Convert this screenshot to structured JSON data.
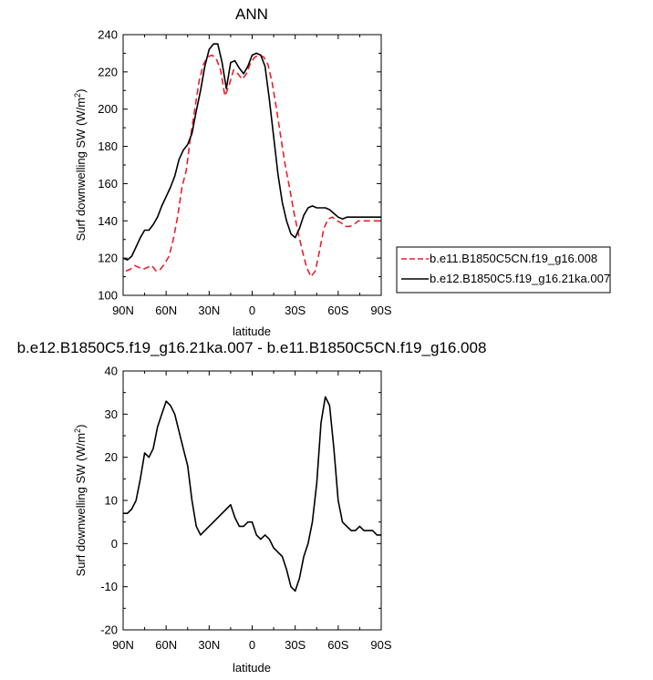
{
  "chart_data": [
    {
      "type": "line",
      "title": "ANN",
      "xlabel": "latitude",
      "ylabel": "Surf downwelling SW (W/m²)",
      "ylabel_main": "Surf downwelling SW (W/m",
      "ylabel_sup": "2",
      "ylabel_end": ")",
      "xlim": [
        90,
        -90
      ],
      "ylim": [
        100,
        240
      ],
      "xticks": [
        90,
        60,
        30,
        0,
        -30,
        -60,
        -90
      ],
      "xtick_labels": [
        "90N",
        "60N",
        "30N",
        "0",
        "30S",
        "60S",
        "90S"
      ],
      "yticks": [
        100,
        120,
        140,
        160,
        180,
        200,
        220,
        240
      ],
      "ytick_labels": [
        "100",
        "120",
        "140",
        "160",
        "180",
        "200",
        "220",
        "240"
      ],
      "legend_position": "right",
      "series": [
        {
          "name": "b.e11.B1850C5CN.f19_g16.008",
          "color": "#e8212b",
          "dash": "dashed",
          "x": [
            88,
            85,
            82,
            79,
            76,
            73,
            70,
            67,
            64,
            61,
            58,
            55,
            52,
            49,
            46,
            43,
            40,
            37,
            34,
            31,
            28,
            25,
            22,
            19,
            16,
            13,
            10,
            7,
            4,
            1,
            -2,
            -5,
            -8,
            -11,
            -14,
            -17,
            -20,
            -23,
            -26,
            -29,
            -32,
            -35,
            -38,
            -41,
            -44,
            -47,
            -50,
            -53,
            -56,
            -59,
            -62,
            -65,
            -68,
            -71,
            -74,
            -77,
            -80,
            -83,
            -86,
            -89
          ],
          "y": [
            113,
            114,
            116,
            115,
            114,
            115,
            116,
            113,
            114,
            117,
            121,
            130,
            142,
            158,
            167,
            185,
            200,
            215,
            224,
            228,
            229,
            227,
            221,
            207,
            213,
            221,
            219,
            216,
            219,
            225,
            228,
            229,
            228,
            224,
            214,
            200,
            185,
            170,
            158,
            145,
            134,
            124,
            115,
            110,
            113,
            124,
            136,
            141,
            142,
            140,
            139,
            137,
            137,
            138,
            140,
            140,
            140,
            140,
            140,
            140
          ]
        },
        {
          "name": "b.e12.B1850C5.f19_g16.21ka.007",
          "color": "#000000",
          "dash": "solid",
          "x": [
            90,
            87,
            84,
            81,
            78,
            75,
            72,
            69,
            66,
            63,
            60,
            57,
            54,
            51,
            48,
            45,
            42,
            39,
            36,
            33,
            30,
            27,
            24,
            21,
            18,
            15,
            12,
            9,
            6,
            3,
            0,
            -3,
            -6,
            -9,
            -12,
            -15,
            -18,
            -21,
            -24,
            -27,
            -30,
            -33,
            -36,
            -39,
            -42,
            -45,
            -48,
            -51,
            -54,
            -57,
            -60,
            -63,
            -66,
            -69,
            -72,
            -75,
            -78,
            -81,
            -84,
            -87,
            -90
          ],
          "y": [
            120,
            119,
            121,
            126,
            131,
            135,
            135,
            138,
            142,
            148,
            153,
            158,
            164,
            173,
            178,
            181,
            187,
            199,
            210,
            223,
            232,
            235,
            235,
            225,
            211,
            225,
            226,
            222,
            219,
            223,
            229,
            230,
            229,
            223,
            205,
            185,
            165,
            150,
            140,
            133,
            131,
            136,
            143,
            147,
            148,
            147,
            147,
            147,
            146,
            144,
            142,
            141,
            142,
            142,
            142,
            142,
            142,
            142,
            142,
            142,
            142
          ]
        }
      ]
    },
    {
      "type": "line",
      "title": "b.e12.B1850C5.f19_g16.21ka.007 - b.e11.B1850C5CN.f19_g16.008",
      "xlabel": "latitude",
      "ylabel": "Surf downwelling SW (W/m²)",
      "ylabel_main": "Surf downwelling SW (W/m",
      "ylabel_sup": "2",
      "ylabel_end": ")",
      "xlim": [
        90,
        -90
      ],
      "ylim": [
        -20,
        40
      ],
      "xticks": [
        90,
        60,
        30,
        0,
        -30,
        -60,
        -90
      ],
      "xtick_labels": [
        "90N",
        "60N",
        "30N",
        "0",
        "30S",
        "60S",
        "90S"
      ],
      "yticks": [
        -20,
        -10,
        0,
        10,
        20,
        30,
        40
      ],
      "ytick_labels": [
        "-20",
        "-10",
        "0",
        "10",
        "20",
        "30",
        "40"
      ],
      "series": [
        {
          "color": "#000000",
          "dash": "solid",
          "x": [
            90,
            87,
            84,
            81,
            78,
            75,
            72,
            69,
            66,
            63,
            60,
            57,
            54,
            51,
            48,
            45,
            42,
            39,
            36,
            33,
            30,
            27,
            24,
            21,
            18,
            15,
            12,
            9,
            6,
            3,
            0,
            -3,
            -6,
            -9,
            -12,
            -15,
            -18,
            -21,
            -24,
            -27,
            -30,
            -33,
            -36,
            -39,
            -42,
            -45,
            -48,
            -51,
            -54,
            -57,
            -60,
            -63,
            -66,
            -69,
            -72,
            -75,
            -78,
            -81,
            -84,
            -87,
            -90
          ],
          "y": [
            7,
            7,
            8,
            10,
            15,
            21,
            20,
            22,
            27,
            30,
            33,
            32,
            30,
            26,
            22,
            18,
            10,
            4,
            2,
            3,
            4,
            5,
            6,
            7,
            8,
            9,
            6,
            4,
            4,
            5,
            5,
            2,
            1,
            2,
            1,
            -1,
            -2,
            -3,
            -6,
            -10,
            -11,
            -8,
            -3,
            0,
            5,
            14,
            28,
            34,
            32,
            22,
            10,
            5,
            4,
            3,
            3,
            4,
            3,
            3,
            3,
            2,
            2
          ]
        }
      ]
    }
  ]
}
